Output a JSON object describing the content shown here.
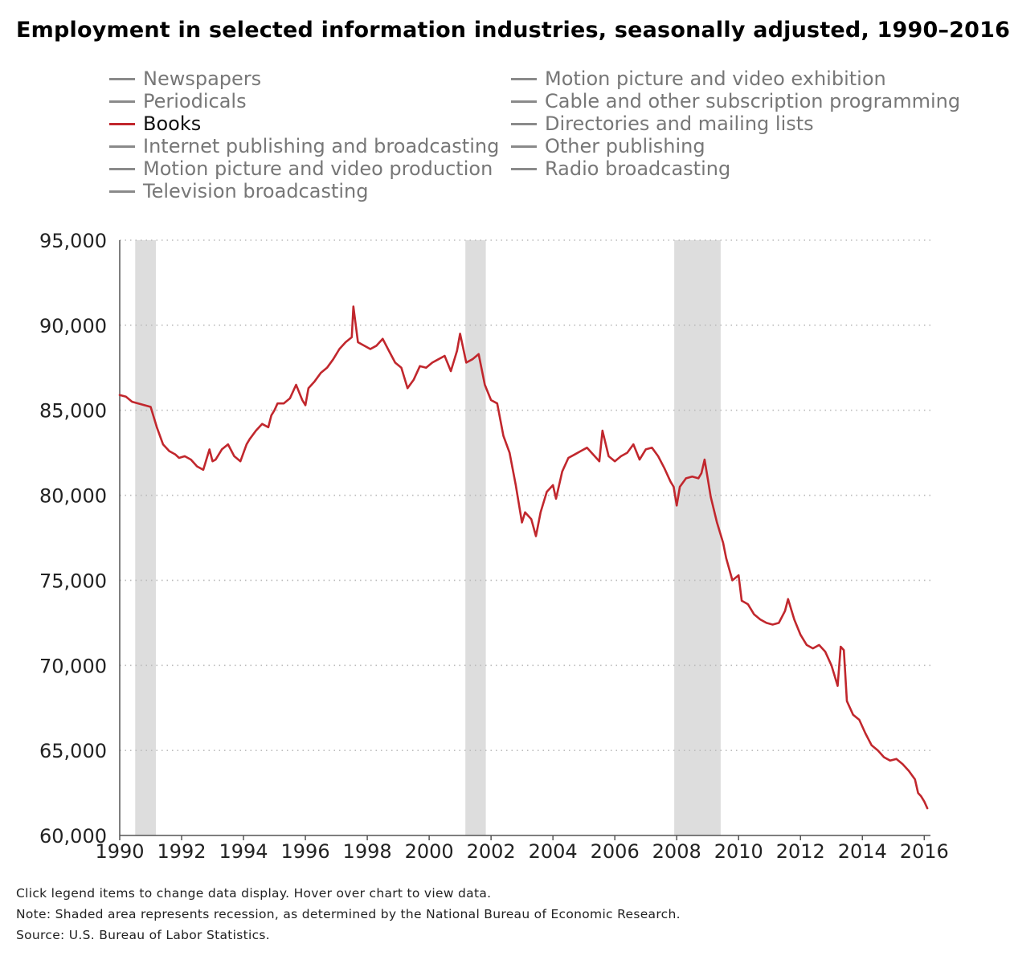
{
  "title": "Employment in selected information industries, seasonally adjusted, 1990–2016",
  "legend": {
    "left": [
      "Newspapers",
      "Periodicals",
      "Books",
      "Internet publishing and broadcasting",
      "Motion picture and video production",
      "Television broadcasting"
    ],
    "right": [
      "Motion picture and video exhibition",
      "Cable and other subscription programming",
      "Directories and mailing lists",
      "Other publishing",
      "Radio broadcasting"
    ],
    "active": "Books"
  },
  "colors": {
    "active_series": "#c1272d",
    "inactive_legend": "#8a8a8a",
    "recession": "#dddddd",
    "grid": "#bbbbbb"
  },
  "notes": {
    "line1": "Click legend items to change data display. Hover over chart to view data.",
    "line2": "Note: Shaded area represents recession, as determined by the National Bureau of Economic Research.",
    "line3": "Source: U.S. Bureau of Labor Statistics."
  },
  "chart_data": {
    "type": "line",
    "xlim": [
      1990,
      2016.2
    ],
    "ylim": [
      60000,
      95000
    ],
    "grid": true,
    "x_ticks": [
      1990,
      1992,
      1994,
      1996,
      1998,
      2000,
      2002,
      2004,
      2006,
      2008,
      2010,
      2012,
      2014,
      2016
    ],
    "x_tick_labels": [
      "1990",
      "1992",
      "1994",
      "1996",
      "1998",
      "2000",
      "2002",
      "2004",
      "2006",
      "2008",
      "2010",
      "2012",
      "2014",
      "2016"
    ],
    "y_ticks": [
      60000,
      65000,
      70000,
      75000,
      80000,
      85000,
      90000,
      95000
    ],
    "y_tick_labels": [
      "60,000",
      "65,000",
      "70,000",
      "75,000",
      "80,000",
      "85,000",
      "90,000",
      "95,000"
    ],
    "recessions": [
      [
        1990.5,
        1991.17
      ],
      [
        2001.17,
        2001.83
      ],
      [
        2007.92,
        2009.42
      ]
    ],
    "series": [
      {
        "name": "Books",
        "x": [
          1990.0,
          1990.2,
          1990.4,
          1990.6,
          1990.8,
          1991.0,
          1991.2,
          1991.4,
          1991.6,
          1991.8,
          1991.92,
          1992.1,
          1992.3,
          1992.5,
          1992.7,
          1992.9,
          1993.0,
          1993.1,
          1993.3,
          1993.5,
          1993.7,
          1993.9,
          1994.1,
          1994.2,
          1994.4,
          1994.6,
          1994.8,
          1994.9,
          1995.0,
          1995.1,
          1995.3,
          1995.5,
          1995.7,
          1995.9,
          1996.0,
          1996.1,
          1996.3,
          1996.5,
          1996.7,
          1996.9,
          1997.1,
          1997.3,
          1997.5,
          1997.55,
          1997.7,
          1997.9,
          1998.1,
          1998.3,
          1998.5,
          1998.7,
          1998.9,
          1999.1,
          1999.3,
          1999.5,
          1999.7,
          1999.9,
          2000.1,
          2000.3,
          2000.5,
          2000.7,
          2000.9,
          2001.0,
          2001.2,
          2001.4,
          2001.6,
          2001.8,
          2002.0,
          2002.2,
          2002.4,
          2002.6,
          2002.8,
          2003.0,
          2003.1,
          2003.3,
          2003.45,
          2003.6,
          2003.8,
          2004.0,
          2004.1,
          2004.3,
          2004.5,
          2004.7,
          2004.9,
          2005.1,
          2005.3,
          2005.5,
          2005.6,
          2005.8,
          2006.0,
          2006.2,
          2006.4,
          2006.6,
          2006.8,
          2007.0,
          2007.2,
          2007.4,
          2007.6,
          2007.8,
          2007.9,
          2008.0,
          2008.1,
          2008.3,
          2008.5,
          2008.7,
          2008.8,
          2008.9,
          2009.1,
          2009.3,
          2009.5,
          2009.6,
          2009.8,
          2010.0,
          2010.1,
          2010.3,
          2010.5,
          2010.7,
          2010.9,
          2011.1,
          2011.3,
          2011.5,
          2011.6,
          2011.8,
          2012.0,
          2012.2,
          2012.4,
          2012.6,
          2012.8,
          2013.0,
          2013.2,
          2013.3,
          2013.4,
          2013.5,
          2013.7,
          2013.9,
          2014.1,
          2014.3,
          2014.5,
          2014.7,
          2014.9,
          2015.1,
          2015.3,
          2015.5,
          2015.7,
          2015.8,
          2015.9,
          2016.0,
          2016.1
        ],
        "y": [
          85900,
          85800,
          85500,
          85400,
          85300,
          85200,
          84000,
          83000,
          82600,
          82400,
          82200,
          82300,
          82100,
          81700,
          81500,
          82700,
          82000,
          82100,
          82700,
          83000,
          82300,
          82000,
          83000,
          83300,
          83800,
          84200,
          84000,
          84700,
          85000,
          85400,
          85400,
          85700,
          86500,
          85600,
          85300,
          86300,
          86700,
          87200,
          87500,
          88000,
          88600,
          89000,
          89300,
          91100,
          89000,
          88800,
          88600,
          88800,
          89200,
          88500,
          87800,
          87500,
          86300,
          86800,
          87600,
          87500,
          87800,
          88000,
          88200,
          87300,
          88500,
          89500,
          87800,
          88000,
          88300,
          86500,
          85600,
          85400,
          83500,
          82500,
          80600,
          78400,
          79000,
          78600,
          77600,
          79000,
          80200,
          80600,
          79800,
          81400,
          82200,
          82400,
          82600,
          82800,
          82400,
          82000,
          83800,
          82300,
          82000,
          82300,
          82500,
          83000,
          82100,
          82700,
          82800,
          82300,
          81600,
          80800,
          80500,
          79400,
          80500,
          81000,
          81100,
          81000,
          81300,
          82100,
          79900,
          78400,
          77200,
          76300,
          75000,
          75300,
          73800,
          73600,
          73000,
          72700,
          72500,
          72400,
          72500,
          73200,
          73900,
          72700,
          71800,
          71200,
          71000,
          71200,
          70800,
          70000,
          68800,
          71100,
          70900,
          67900,
          67100,
          66800,
          66000,
          65300,
          65000,
          64600,
          64400,
          64500,
          64200,
          63800,
          63300,
          62500,
          62300,
          62000,
          61600
        ]
      }
    ]
  }
}
